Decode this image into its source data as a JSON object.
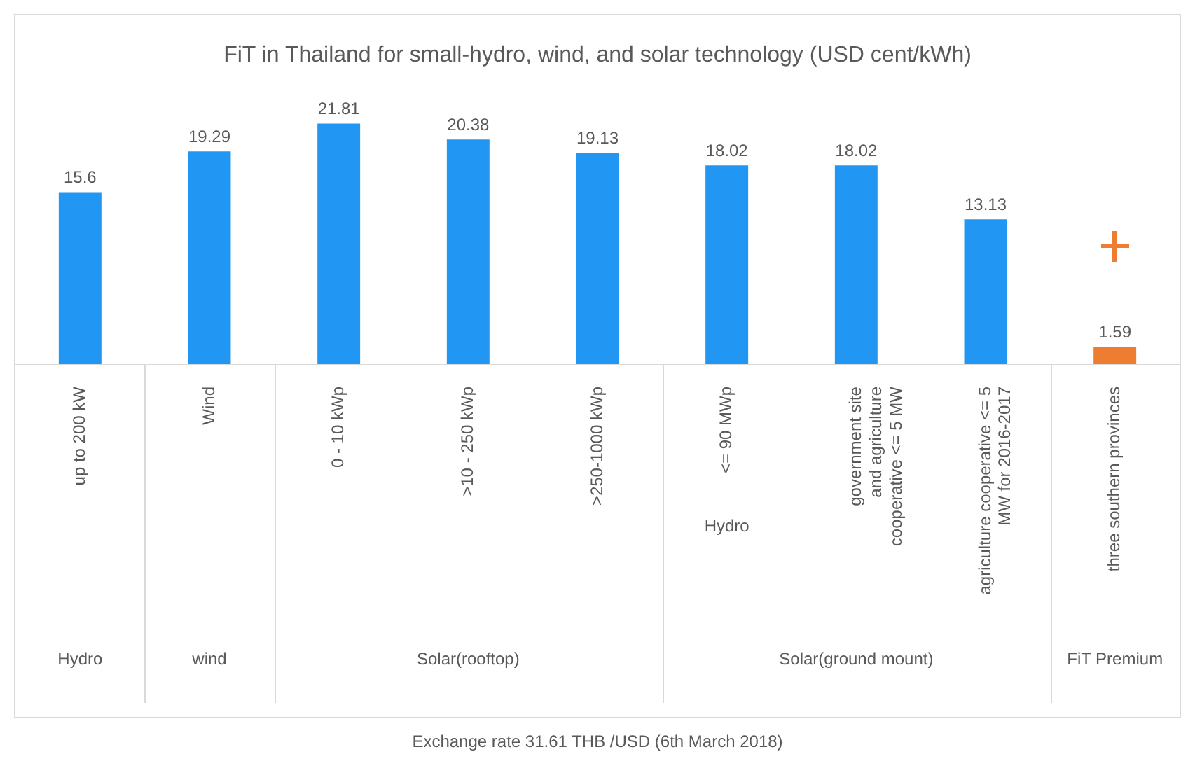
{
  "chart_data": {
    "type": "bar",
    "title": "FiT in Thailand for small-hydro, wind, and solar technology (USD cent/kWh)",
    "categories": [
      "up to 200 kW",
      "Wind",
      "0 - 10 kWp",
      ">10 - 250 kWp",
      ">250-1000 kWp",
      "<= 90 MWp",
      "government site\nand agriculture\ncooperative <= 5 MW",
      "agriculture cooperative <= 5\nMW for 2016-2017",
      "three southern provinces"
    ],
    "values": [
      15.6,
      19.29,
      21.81,
      20.38,
      19.13,
      18.02,
      18.02,
      13.13,
      1.59
    ],
    "colors": [
      "#2196f3",
      "#2196f3",
      "#2196f3",
      "#2196f3",
      "#2196f3",
      "#2196f3",
      "#2196f3",
      "#2196f3",
      "#ed7d31"
    ],
    "data_labels": true,
    "grid": false,
    "legend": false,
    "annotations": [
      "Hydro",
      "wind",
      "Solar(rooftop)",
      "Solar(ground mount)",
      "FiT Premium",
      "Hydro",
      "Exchange rate 31.61 THB /USD (6th March 2018)"
    ]
  }
}
